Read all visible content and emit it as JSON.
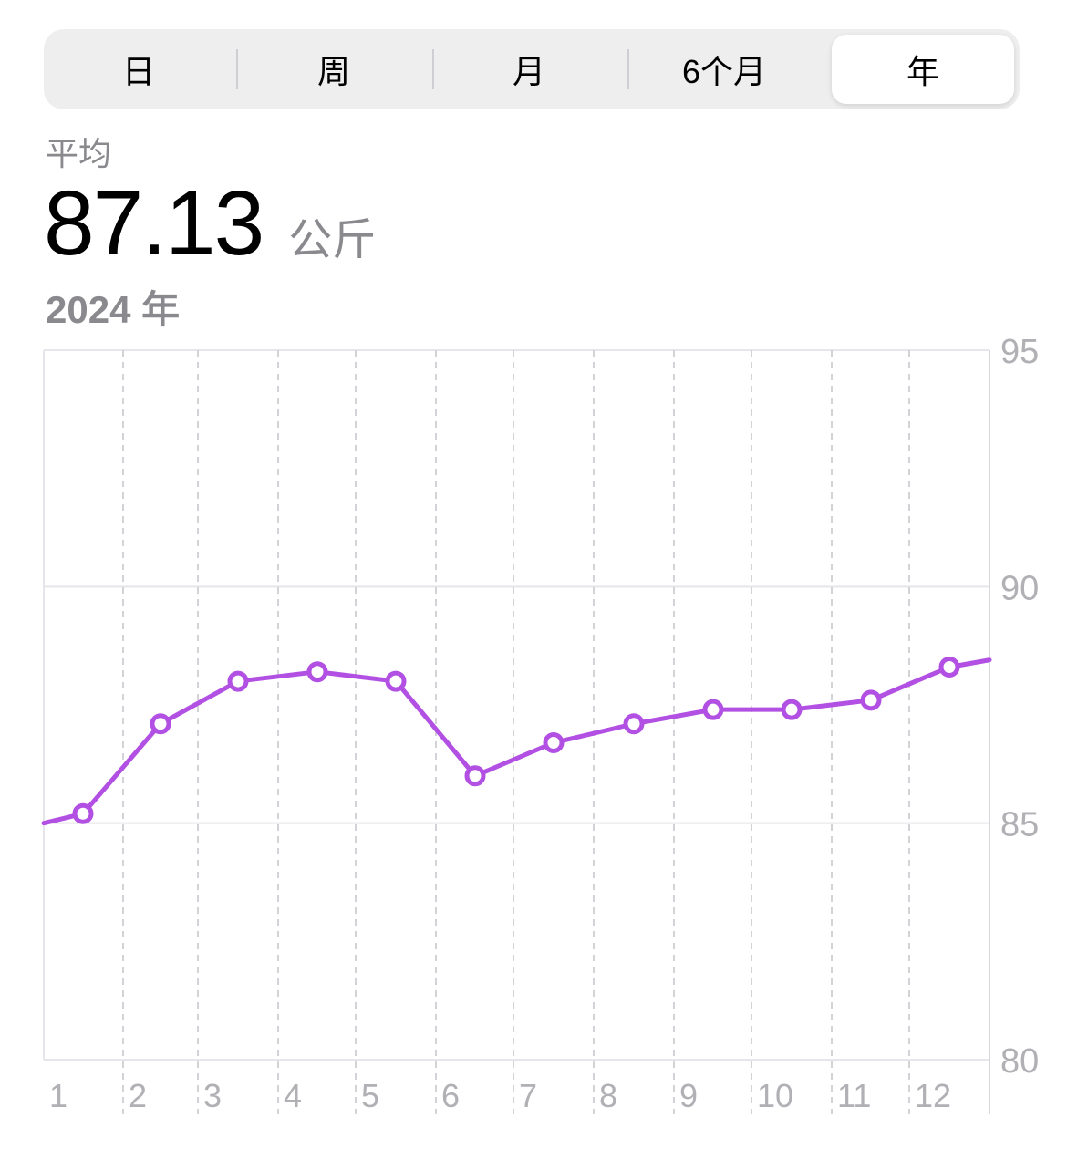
{
  "segments": [
    {
      "label": "日",
      "active": false
    },
    {
      "label": "周",
      "active": false
    },
    {
      "label": "月",
      "active": false
    },
    {
      "label": "6个月",
      "active": false
    },
    {
      "label": "年",
      "active": true
    }
  ],
  "summary": {
    "label": "平均",
    "value": "87.13",
    "unit": "公斤",
    "period": "2024 年"
  },
  "chart_data": {
    "type": "line",
    "x": [
      1,
      2,
      3,
      4,
      5,
      6,
      7,
      8,
      9,
      10,
      11,
      12
    ],
    "x_tick_labels": [
      "1",
      "2",
      "3",
      "4",
      "5",
      "6",
      "7",
      "8",
      "9",
      "10",
      "11",
      "12"
    ],
    "series": [
      {
        "values": [
          85.2,
          87.1,
          88.0,
          88.2,
          88.0,
          86.0,
          86.7,
          87.1,
          87.4,
          87.4,
          87.6,
          88.3
        ]
      }
    ],
    "ylim": [
      80,
      95
    ],
    "y_ticks": [
      "95",
      "90",
      "85",
      "80"
    ],
    "grid": true,
    "line_color": "#b150e2"
  }
}
